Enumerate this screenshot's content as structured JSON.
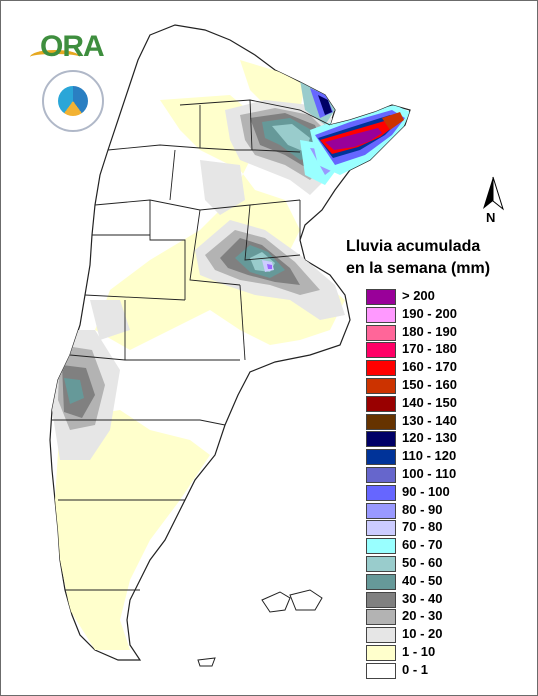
{
  "legend": {
    "title_line1": "Lluvia acumulada",
    "title_line2": "en la semana (mm)",
    "items": [
      {
        "label": "> 200",
        "color": "#990099"
      },
      {
        "label": "190 - 200",
        "color": "#ff99ff"
      },
      {
        "label": "180 - 190",
        "color": "#ff6699"
      },
      {
        "label": "170 - 180",
        "color": "#ff0066"
      },
      {
        "label": "160 - 170",
        "color": "#ff0000"
      },
      {
        "label": "150 - 160",
        "color": "#cc3300"
      },
      {
        "label": "140 - 150",
        "color": "#990000"
      },
      {
        "label": "130 - 140",
        "color": "#663300"
      },
      {
        "label": "120 - 130",
        "color": "#000066"
      },
      {
        "label": "110 - 120",
        "color": "#003399"
      },
      {
        "label": "100 - 110",
        "color": "#6666cc"
      },
      {
        "label": "90 - 100",
        "color": "#6666ff"
      },
      {
        "label": "80 - 90",
        "color": "#9999ff"
      },
      {
        "label": "70 - 80",
        "color": "#ccccff"
      },
      {
        "label": "60 - 70",
        "color": "#99ffff"
      },
      {
        "label": "50 - 60",
        "color": "#99cccc"
      },
      {
        "label": "40 - 50",
        "color": "#669999"
      },
      {
        "label": "30 - 40",
        "color": "#808080"
      },
      {
        "label": "20 - 30",
        "color": "#b3b3b3"
      },
      {
        "label": "10 - 20",
        "color": "#e6e6e6"
      },
      {
        "label": "1 - 10",
        "color": "#ffffcc"
      },
      {
        "label": "0 - 1",
        "color": "#ffffff"
      }
    ]
  },
  "north_arrow": {
    "label": "N",
    "icon": "north-arrow-icon"
  },
  "logos": {
    "ora": "ORA",
    "seal_icon": "smn-seal-icon"
  }
}
